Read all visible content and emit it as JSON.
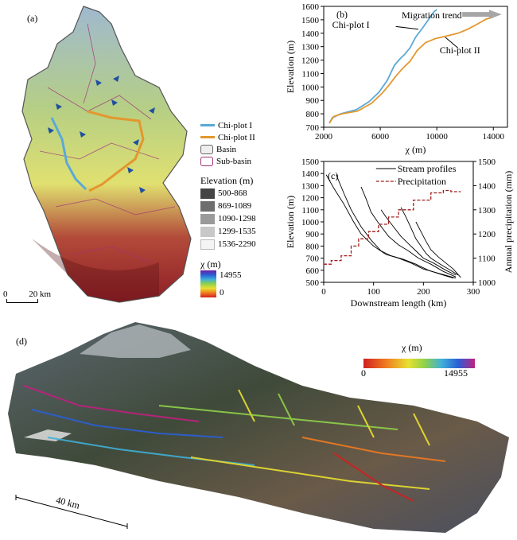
{
  "panel_a": {
    "label": "(a)",
    "legend": {
      "chi_plot_1": "Chi-plot I",
      "chi_plot_2": "Chi-plot II",
      "basin": "Basin",
      "sub_basin": "Sub-basin",
      "elevation_title": "Elevation (m)",
      "elevation_classes": [
        "500-868",
        "869-1089",
        "1090-1298",
        "1299-1535",
        "1536-2290"
      ],
      "elevation_colors": [
        "#444444",
        "#6e6e6e",
        "#9a9a9a",
        "#c8c8c8",
        "#f4f4f4"
      ],
      "chi_title": "χ (m)",
      "chi_max": "14955",
      "chi_min": "0"
    },
    "scalebar": {
      "start": "0",
      "end": "20 km"
    },
    "colors": {
      "chi_plot_1": "#5aa9d8",
      "chi_plot_2": "#e3972e",
      "sub_basin": "#a0307a"
    }
  },
  "panel_b": {
    "label": "(b)",
    "annotation_trend": "Migration trend",
    "annotation_1": "Chi-plot I",
    "annotation_2": "Chi-plot II",
    "chart_data": {
      "type": "line",
      "xlabel": "χ (m)",
      "ylabel": "Elevation (m)",
      "xlim": [
        2000,
        15000
      ],
      "ylim": [
        700,
        1600
      ],
      "xticks": [
        2000,
        6000,
        10000,
        14000
      ],
      "yticks": [
        700,
        800,
        900,
        1000,
        1100,
        1200,
        1300,
        1400,
        1500,
        1600
      ],
      "series": [
        {
          "name": "Chi-plot I",
          "color": "#5aa9d8",
          "points": [
            [
              2400,
              730
            ],
            [
              2600,
              770
            ],
            [
              3200,
              800
            ],
            [
              4300,
              830
            ],
            [
              5200,
              890
            ],
            [
              5900,
              960
            ],
            [
              6500,
              1050
            ],
            [
              7000,
              1160
            ],
            [
              7400,
              1210
            ],
            [
              7700,
              1240
            ],
            [
              8100,
              1290
            ],
            [
              8500,
              1370
            ],
            [
              9000,
              1440
            ],
            [
              9400,
              1500
            ],
            [
              9800,
              1560
            ],
            [
              10000,
              1575
            ]
          ]
        },
        {
          "name": "Chi-plot II",
          "color": "#e3972e",
          "points": [
            [
              2400,
              730
            ],
            [
              2700,
              780
            ],
            [
              3300,
              800
            ],
            [
              4400,
              820
            ],
            [
              5400,
              880
            ],
            [
              6100,
              950
            ],
            [
              6600,
              1010
            ],
            [
              7100,
              1080
            ],
            [
              7600,
              1140
            ],
            [
              8100,
              1190
            ],
            [
              8600,
              1270
            ],
            [
              9200,
              1330
            ],
            [
              9900,
              1360
            ],
            [
              10700,
              1380
            ],
            [
              11500,
              1400
            ],
            [
              12200,
              1430
            ],
            [
              12900,
              1470
            ],
            [
              13500,
              1505
            ],
            [
              14000,
              1520
            ]
          ]
        }
      ]
    }
  },
  "panel_c": {
    "label": "(c)",
    "legend_profiles": "Stream profiles",
    "legend_precip": "Precipitation",
    "chart_data": {
      "type": "line",
      "xlabel": "Downstream length (km)",
      "ylabel": "Elevation (m)",
      "y2label": "Annual precipitation (mm)",
      "xlim": [
        0,
        300
      ],
      "ylim": [
        500,
        1500
      ],
      "y2lim": [
        1000,
        1500
      ],
      "xticks": [
        0,
        100,
        200,
        300
      ],
      "yticks": [
        500,
        600,
        700,
        800,
        900,
        1000,
        1100,
        1200,
        1300,
        1400,
        1500
      ],
      "y2ticks": [
        1000,
        1100,
        1200,
        1300,
        1400,
        1500
      ],
      "profiles": [
        [
          [
            5,
            1390
          ],
          [
            20,
            1280
          ],
          [
            40,
            1150
          ],
          [
            60,
            1000
          ],
          [
            75,
            900
          ],
          [
            100,
            800
          ],
          [
            125,
            730
          ],
          [
            150,
            700
          ],
          [
            175,
            660
          ],
          [
            200,
            610
          ],
          [
            235,
            570
          ],
          [
            265,
            535
          ]
        ],
        [
          [
            25,
            1390
          ],
          [
            40,
            1240
          ],
          [
            55,
            1100
          ],
          [
            75,
            960
          ],
          [
            95,
            850
          ],
          [
            115,
            760
          ],
          [
            135,
            720
          ],
          [
            160,
            690
          ],
          [
            185,
            650
          ],
          [
            210,
            600
          ],
          [
            240,
            560
          ],
          [
            260,
            535
          ]
        ],
        [
          [
            75,
            1290
          ],
          [
            85,
            1190
          ],
          [
            95,
            1080
          ],
          [
            110,
            990
          ],
          [
            130,
            880
          ],
          [
            150,
            810
          ],
          [
            170,
            760
          ],
          [
            190,
            700
          ],
          [
            215,
            650
          ],
          [
            240,
            590
          ],
          [
            265,
            545
          ]
        ],
        [
          [
            115,
            1100
          ],
          [
            125,
            1040
          ],
          [
            140,
            960
          ],
          [
            155,
            880
          ],
          [
            170,
            820
          ],
          [
            185,
            760
          ],
          [
            200,
            700
          ],
          [
            220,
            660
          ],
          [
            245,
            600
          ],
          [
            265,
            560
          ]
        ],
        [
          [
            155,
            1120
          ],
          [
            165,
            1040
          ],
          [
            175,
            950
          ],
          [
            185,
            860
          ],
          [
            195,
            800
          ],
          [
            205,
            740
          ],
          [
            215,
            700
          ],
          [
            230,
            660
          ],
          [
            250,
            610
          ],
          [
            270,
            560
          ]
        ],
        [
          [
            185,
            1000
          ],
          [
            195,
            920
          ],
          [
            205,
            840
          ],
          [
            215,
            770
          ],
          [
            230,
            710
          ],
          [
            245,
            660
          ],
          [
            260,
            610
          ],
          [
            275,
            540
          ]
        ]
      ],
      "precipitation": [
        [
          0,
          1075
        ],
        [
          15,
          1075
        ],
        [
          15,
          1090
        ],
        [
          35,
          1090
        ],
        [
          35,
          1110
        ],
        [
          55,
          1110
        ],
        [
          55,
          1150
        ],
        [
          70,
          1150
        ],
        [
          70,
          1180
        ],
        [
          90,
          1180
        ],
        [
          90,
          1210
        ],
        [
          110,
          1210
        ],
        [
          110,
          1240
        ],
        [
          130,
          1240
        ],
        [
          130,
          1270
        ],
        [
          150,
          1270
        ],
        [
          150,
          1300
        ],
        [
          180,
          1300
        ],
        [
          180,
          1340
        ],
        [
          215,
          1340
        ],
        [
          215,
          1370
        ],
        [
          240,
          1370
        ],
        [
          240,
          1380
        ],
        [
          255,
          1380
        ],
        [
          255,
          1375
        ],
        [
          275,
          1375
        ]
      ]
    }
  },
  "panel_d": {
    "label": "(d)",
    "chi_title": "χ (m)",
    "chi_min": "0",
    "chi_max": "14955",
    "scalebar": "40 km"
  }
}
